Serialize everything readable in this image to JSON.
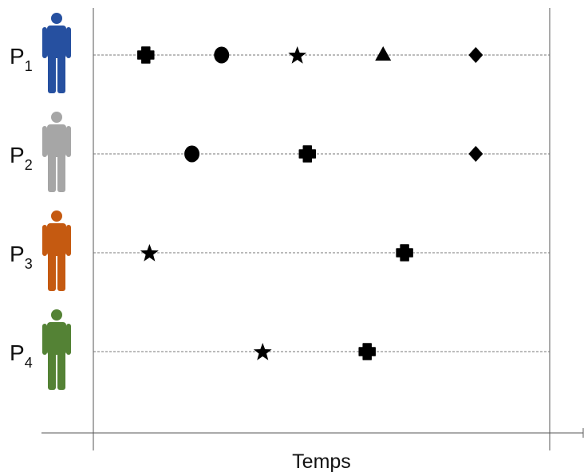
{
  "x_axis_label": "Temps",
  "event_symbols": [
    "cross",
    "circle",
    "star",
    "triangle",
    "diamond"
  ],
  "colors": {
    "axis": "#555555",
    "timeline": "#777777",
    "marker": "#000000"
  },
  "participants": [
    {
      "id": "P1",
      "letter": "P",
      "subscript": "1",
      "color": "#2650A0",
      "events": [
        {
          "symbol": "cross",
          "t": 0.115
        },
        {
          "symbol": "circle",
          "t": 0.281
        },
        {
          "symbol": "star",
          "t": 0.447
        },
        {
          "symbol": "triangle",
          "t": 0.635
        },
        {
          "symbol": "diamond",
          "t": 0.838
        }
      ]
    },
    {
      "id": "P2",
      "letter": "P",
      "subscript": "2",
      "color": "#A6A6A6",
      "events": [
        {
          "symbol": "circle",
          "t": 0.216
        },
        {
          "symbol": "cross",
          "t": 0.469
        },
        {
          "symbol": "diamond",
          "t": 0.838
        }
      ]
    },
    {
      "id": "P3",
      "letter": "P",
      "subscript": "3",
      "color": "#C55A11",
      "events": [
        {
          "symbol": "star",
          "t": 0.123
        },
        {
          "symbol": "cross",
          "t": 0.682
        }
      ]
    },
    {
      "id": "P4",
      "letter": "P",
      "subscript": "4",
      "color": "#548235",
      "events": [
        {
          "symbol": "star",
          "t": 0.371
        },
        {
          "symbol": "cross",
          "t": 0.6
        }
      ]
    }
  ]
}
